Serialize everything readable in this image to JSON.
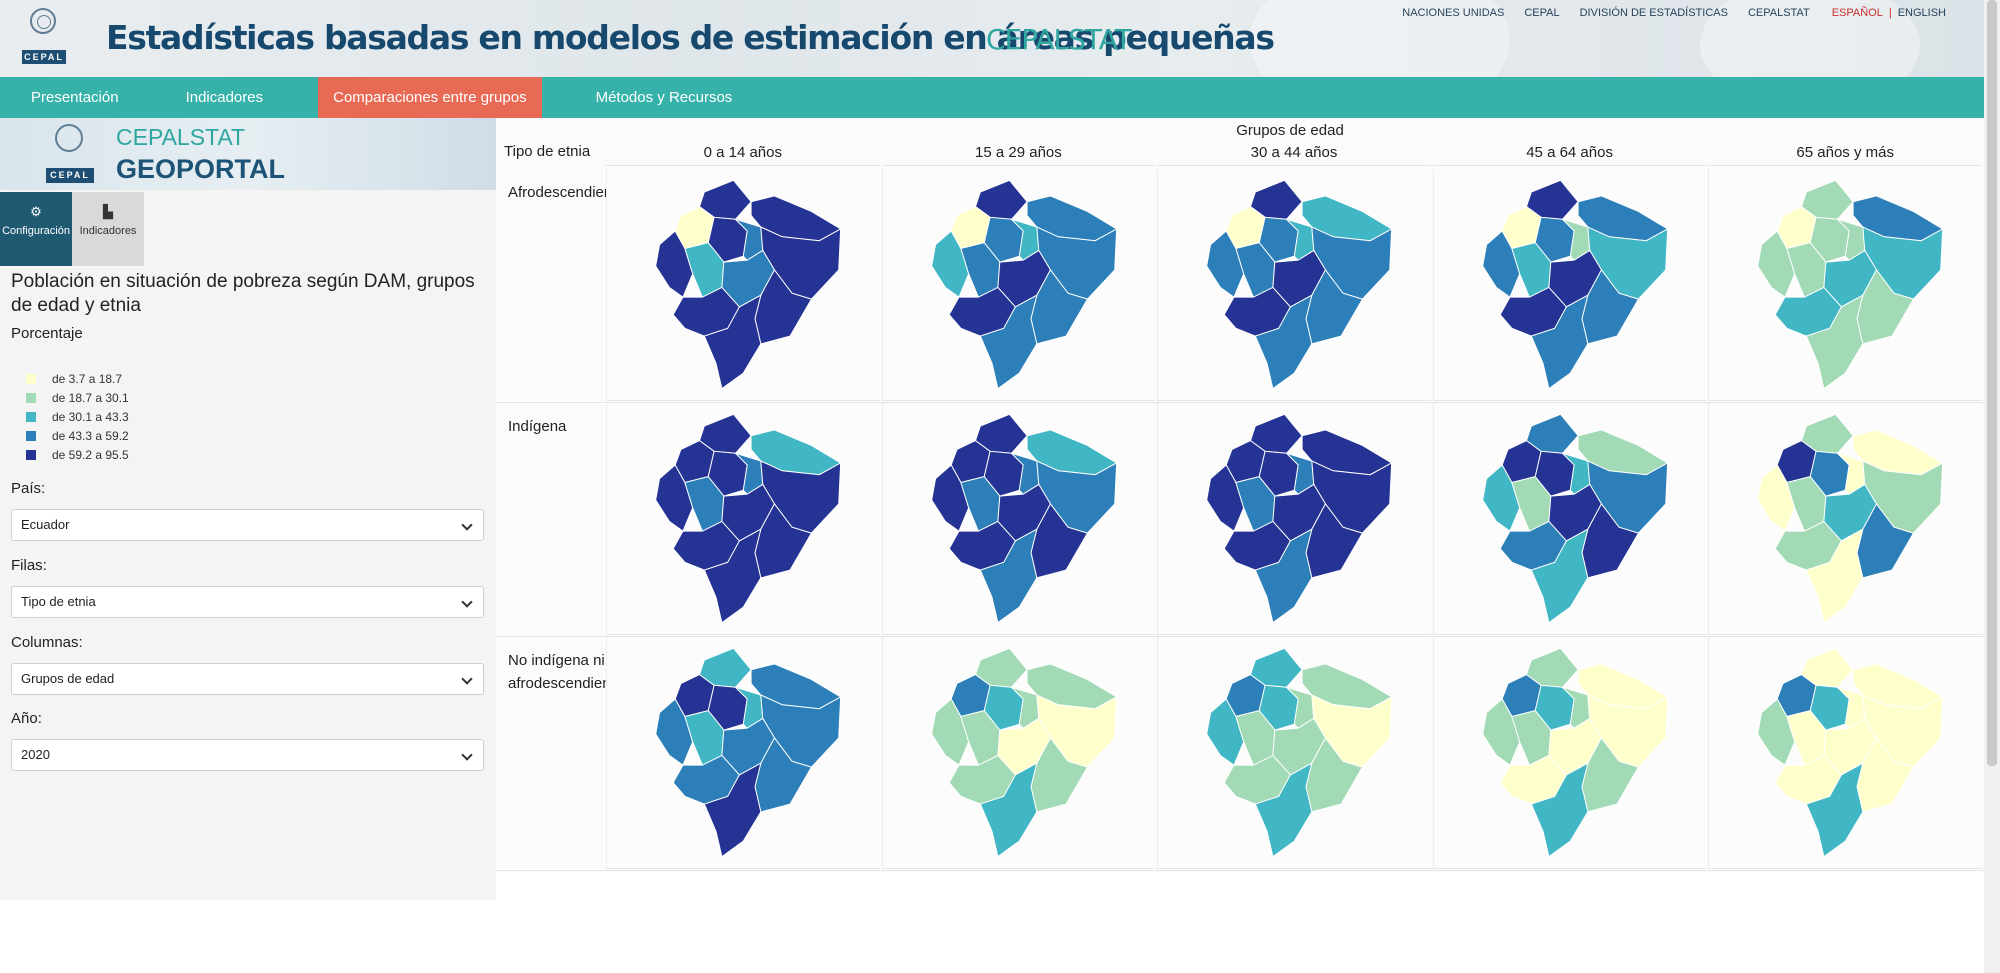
{
  "header": {
    "logo_text": "CEPAL",
    "title": "Estadísticas basadas en modelos de estimación en áreas pequeñas",
    "brand": "CEPALSTAT",
    "links": [
      "NACIONES UNIDAS",
      "CEPAL",
      "DIVISIÓN DE ESTADÍSTICAS",
      "CEPALSTAT"
    ],
    "lang_active": "ESPAÑOL",
    "lang_sep": "|",
    "lang_other": "ENGLISH"
  },
  "nav": {
    "items": [
      "Presentación",
      "Indicadores",
      "Comparaciones entre grupos",
      "Métodos y Recursos"
    ],
    "active_index": 2
  },
  "sidebar": {
    "banner_logo": "CEPAL",
    "banner_sub": "CEPALSTAT",
    "banner_title": "GEOPORTAL",
    "tabs": [
      {
        "label": "Configuración",
        "icon": "gear-icon",
        "glyph": "⚙"
      },
      {
        "label": "Indicadores",
        "icon": "chart-icon",
        "glyph": "▙"
      }
    ],
    "panel_title": "Población en situación de pobreza según DAM, grupos de edad y etnia",
    "unit": "Porcentaje",
    "legend": [
      {
        "label": "de 3.7 a 18.7",
        "color": "#ffffcc"
      },
      {
        "label": "de 18.7 a 30.1",
        "color": "#a1dab4"
      },
      {
        "label": "de 30.1 a 43.3",
        "color": "#41b6c4"
      },
      {
        "label": "de 43.3 a 59.2",
        "color": "#2c7fb8"
      },
      {
        "label": "de 59.2 a 95.5",
        "color": "#253494"
      }
    ],
    "fields": {
      "pais": {
        "label": "País:",
        "value": "Ecuador"
      },
      "filas": {
        "label": "Filas:",
        "value": "Tipo de etnia"
      },
      "columnas": {
        "label": "Columnas:",
        "value": "Grupos de edad"
      },
      "anio": {
        "label": "Año:",
        "value": "2020"
      }
    }
  },
  "grid": {
    "column_group_title": "Grupos de edad",
    "row_group_title": "Tipo de etnia",
    "columns": [
      "0 a 14 años",
      "15 a 29 años",
      "30 a 44 años",
      "45 a 64 años",
      "65 años y más"
    ],
    "rows": [
      {
        "label_line1": "Afrodescendiente",
        "label_line2": ""
      },
      {
        "label_line1": "Indígena",
        "label_line2": ""
      },
      {
        "label_line1": "No indígena ni",
        "label_line2": "afrodescendiente"
      }
    ],
    "map_classes": [
      [
        [
          4,
          4,
          0,
          4,
          3,
          4,
          4,
          2,
          3,
          4,
          4,
          4
        ],
        [
          4,
          3,
          0,
          3,
          2,
          3,
          2,
          3,
          4,
          3,
          4,
          3
        ],
        [
          4,
          2,
          0,
          3,
          2,
          3,
          3,
          3,
          4,
          3,
          4,
          3
        ],
        [
          4,
          3,
          0,
          3,
          1,
          2,
          3,
          2,
          4,
          3,
          4,
          3
        ],
        [
          1,
          3,
          0,
          1,
          1,
          2,
          1,
          1,
          2,
          1,
          2,
          1
        ]
      ],
      [
        [
          4,
          2,
          4,
          4,
          3,
          4,
          4,
          3,
          4,
          4,
          4,
          4
        ],
        [
          4,
          2,
          4,
          4,
          3,
          3,
          4,
          3,
          4,
          4,
          4,
          3
        ],
        [
          4,
          4,
          4,
          4,
          3,
          4,
          4,
          3,
          4,
          4,
          4,
          3
        ],
        [
          3,
          1,
          4,
          4,
          2,
          3,
          2,
          1,
          4,
          4,
          3,
          2
        ],
        [
          1,
          0,
          4,
          3,
          0,
          1,
          0,
          1,
          2,
          3,
          1,
          0
        ]
      ],
      [
        [
          2,
          3,
          4,
          4,
          2,
          3,
          3,
          2,
          3,
          3,
          3,
          4
        ],
        [
          1,
          1,
          3,
          2,
          1,
          0,
          1,
          1,
          0,
          1,
          1,
          2
        ],
        [
          2,
          1,
          3,
          2,
          1,
          0,
          2,
          1,
          1,
          1,
          1,
          2
        ],
        [
          1,
          0,
          3,
          2,
          1,
          0,
          1,
          1,
          0,
          1,
          0,
          2
        ],
        [
          0,
          0,
          3,
          2,
          0,
          0,
          1,
          0,
          0,
          0,
          0,
          2
        ]
      ]
    ]
  }
}
